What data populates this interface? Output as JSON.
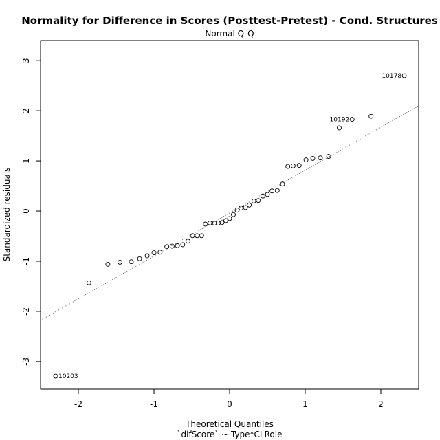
{
  "chart_data": {
    "type": "scatter",
    "title": "Normality for Difference in Scores (Posttest-Pretest) - Cond. Structures",
    "subtitle": "Normal Q-Q",
    "xlabel": "Theoretical Quantiles",
    "xlabel2": "`difScore` ~ Type*CLRole",
    "ylabel": "Standardized residuals",
    "xlim": [
      -2.5,
      2.5
    ],
    "ylim": [
      -3.55,
      3.4
    ],
    "xticks": [
      -2,
      -1,
      0,
      1,
      2
    ],
    "yticks": [
      -3,
      -2,
      -1,
      0,
      1,
      2,
      3
    ],
    "xtick_labels": [
      "-2",
      "-1",
      "0",
      "1",
      "2"
    ],
    "ytick_labels": [
      "-3",
      "-2",
      "-1",
      "0",
      "1",
      "2",
      "3"
    ],
    "reference_line": {
      "style": "dotted",
      "slope": 0.855,
      "intercept": -0.04
    },
    "points": [
      {
        "x": -2.3,
        "y": -3.29,
        "label": "10203"
      },
      {
        "x": -1.86,
        "y": -1.43
      },
      {
        "x": -1.61,
        "y": -1.06
      },
      {
        "x": -1.45,
        "y": -1.02
      },
      {
        "x": -1.3,
        "y": -1.01
      },
      {
        "x": -1.19,
        "y": -0.95
      },
      {
        "x": -1.09,
        "y": -0.89
      },
      {
        "x": -1.0,
        "y": -0.83
      },
      {
        "x": -0.92,
        "y": -0.82
      },
      {
        "x": -0.83,
        "y": -0.71
      },
      {
        "x": -0.76,
        "y": -0.7
      },
      {
        "x": -0.69,
        "y": -0.69
      },
      {
        "x": -0.62,
        "y": -0.67
      },
      {
        "x": -0.55,
        "y": -0.6
      },
      {
        "x": -0.49,
        "y": -0.49
      },
      {
        "x": -0.43,
        "y": -0.49
      },
      {
        "x": -0.37,
        "y": -0.49
      },
      {
        "x": -0.32,
        "y": -0.26
      },
      {
        "x": -0.26,
        "y": -0.24
      },
      {
        "x": -0.2,
        "y": -0.24
      },
      {
        "x": -0.15,
        "y": -0.24
      },
      {
        "x": -0.1,
        "y": -0.23
      },
      {
        "x": -0.05,
        "y": -0.19
      },
      {
        "x": 0.0,
        "y": -0.15
      },
      {
        "x": 0.05,
        "y": -0.07
      },
      {
        "x": 0.1,
        "y": 0.02
      },
      {
        "x": 0.15,
        "y": 0.06
      },
      {
        "x": 0.21,
        "y": 0.07
      },
      {
        "x": 0.26,
        "y": 0.12
      },
      {
        "x": 0.32,
        "y": 0.2
      },
      {
        "x": 0.38,
        "y": 0.21
      },
      {
        "x": 0.44,
        "y": 0.3
      },
      {
        "x": 0.5,
        "y": 0.33
      },
      {
        "x": 0.56,
        "y": 0.4
      },
      {
        "x": 0.63,
        "y": 0.41
      },
      {
        "x": 0.7,
        "y": 0.54
      },
      {
        "x": 0.77,
        "y": 0.89
      },
      {
        "x": 0.84,
        "y": 0.9
      },
      {
        "x": 0.92,
        "y": 0.91
      },
      {
        "x": 1.01,
        "y": 1.02
      },
      {
        "x": 1.1,
        "y": 1.05
      },
      {
        "x": 1.2,
        "y": 1.06
      },
      {
        "x": 1.31,
        "y": 1.09
      },
      {
        "x": 1.45,
        "y": 1.66
      },
      {
        "x": 1.62,
        "y": 1.83,
        "label": "10192"
      },
      {
        "x": 1.87,
        "y": 1.89
      },
      {
        "x": 2.31,
        "y": 2.7,
        "label": "10178"
      }
    ]
  }
}
